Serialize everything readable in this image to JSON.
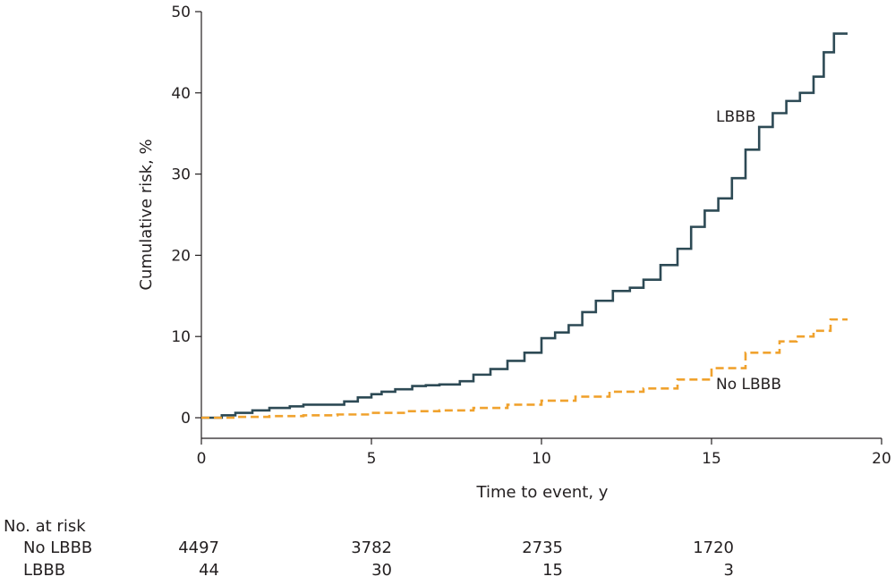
{
  "chart_data": {
    "type": "line",
    "title": "",
    "xlabel": "Time to event, y",
    "ylabel": "Cumulative risk, %",
    "xlim": [
      0,
      20
    ],
    "ylim": [
      0,
      50
    ],
    "xticks": [
      0,
      5,
      10,
      15,
      20
    ],
    "yticks": [
      0,
      10,
      20,
      30,
      40,
      50
    ],
    "grid": false,
    "series": [
      {
        "name": "LBBB",
        "color": "#2d4a55",
        "line_style": "solid",
        "step": true,
        "x": [
          0,
          0.6,
          1.0,
          1.5,
          2.0,
          2.6,
          3.0,
          3.5,
          4.2,
          4.6,
          5.0,
          5.3,
          5.7,
          6.2,
          6.6,
          7.0,
          7.6,
          8.0,
          8.5,
          9.0,
          9.5,
          10.0,
          10.4,
          10.8,
          11.2,
          11.6,
          12.1,
          12.6,
          13.0,
          13.5,
          14.0,
          14.4,
          14.8,
          15.2,
          15.6,
          16.0,
          16.4,
          16.8,
          17.2,
          17.6,
          18.0,
          18.3,
          18.6,
          19.0
        ],
        "y": [
          0,
          0.3,
          0.6,
          0.9,
          1.2,
          1.4,
          1.6,
          1.6,
          2.0,
          2.5,
          2.9,
          3.2,
          3.5,
          3.9,
          4.0,
          4.1,
          4.5,
          5.3,
          6.0,
          7.0,
          8.0,
          9.8,
          10.5,
          11.4,
          13.0,
          14.4,
          15.6,
          16.0,
          17.0,
          18.8,
          20.8,
          23.5,
          25.5,
          27.0,
          29.5,
          33.0,
          35.8,
          37.5,
          39.0,
          40.0,
          42.0,
          45.0,
          47.3,
          47.3
        ]
      },
      {
        "name": "No LBBB",
        "color": "#f0a22e",
        "line_style": "dashed",
        "step": true,
        "x": [
          0,
          1.0,
          2.0,
          3.0,
          4.0,
          5.0,
          6.0,
          7.0,
          8.0,
          9.0,
          10.0,
          11.0,
          12.0,
          13.0,
          14.0,
          15.0,
          16.0,
          17.0,
          17.5,
          18.0,
          18.5,
          19.0
        ],
        "y": [
          0,
          0.1,
          0.2,
          0.3,
          0.4,
          0.6,
          0.8,
          0.9,
          1.2,
          1.6,
          2.1,
          2.6,
          3.2,
          3.6,
          4.7,
          6.1,
          8.0,
          9.4,
          10.0,
          10.7,
          12.1,
          12.1
        ]
      }
    ]
  },
  "risk_table": {
    "header": "No. at risk",
    "rows": [
      {
        "label": "No LBBB",
        "values": [
          "4497",
          "3782",
          "2735",
          "1720"
        ]
      },
      {
        "label": "LBBB",
        "values": [
          "44",
          "30",
          "15",
          "3"
        ]
      }
    ]
  }
}
